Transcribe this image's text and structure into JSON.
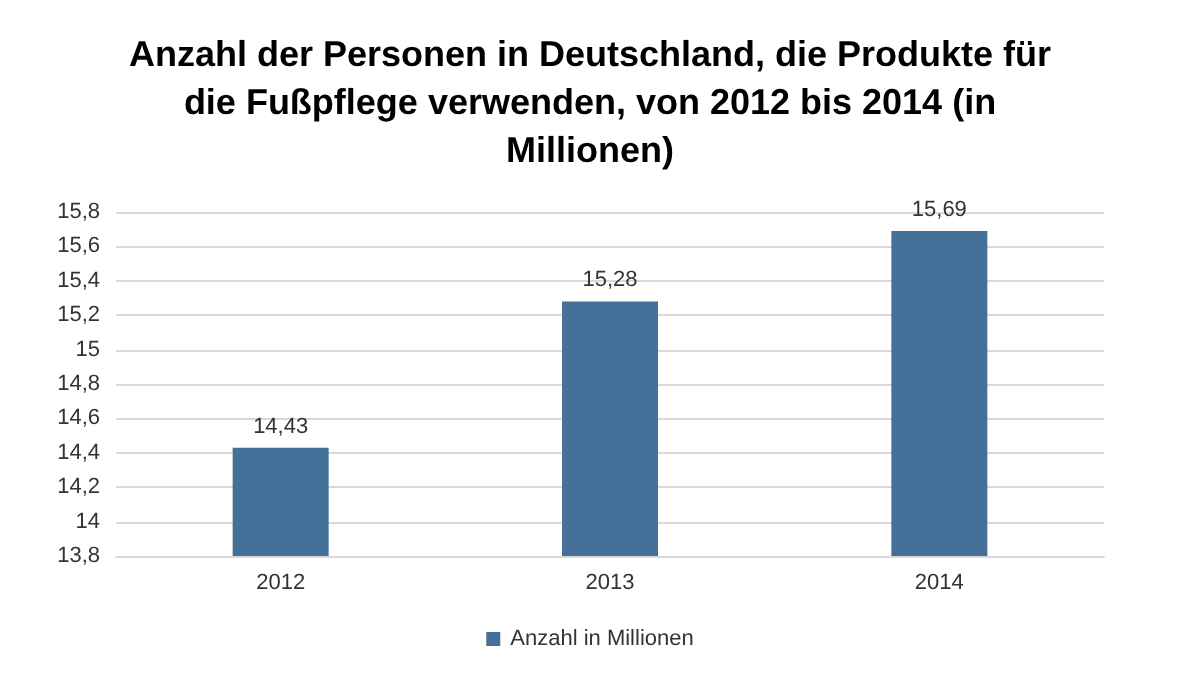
{
  "chart_data": {
    "type": "bar",
    "title": "Anzahl der Personen in Deutschland, die Produkte für die Fußpflege verwenden, von 2012 bis 2014 (in Millionen)",
    "categories": [
      "2012",
      "2013",
      "2014"
    ],
    "series": [
      {
        "name": "Anzahl in Millionen",
        "color": "#44709a",
        "values": [
          14.43,
          15.28,
          15.69
        ],
        "value_labels": [
          "14,43",
          "15,28",
          "15,69"
        ]
      }
    ],
    "ylim": [
      13.8,
      15.8
    ],
    "yticks": [
      {
        "value": 13.8,
        "label": "13,8"
      },
      14,
      {
        "value": 14.2,
        "label": "14,2"
      },
      {
        "value": 14.4,
        "label": "14,4"
      },
      {
        "value": 14.6,
        "label": "14,6"
      },
      {
        "value": 14.8,
        "label": "14,8"
      },
      15,
      {
        "value": 15.2,
        "label": "15,2"
      },
      {
        "value": 15.4,
        "label": "15,4"
      },
      {
        "value": 15.6,
        "label": "15,6"
      },
      {
        "value": 15.8,
        "label": "15,8"
      }
    ],
    "grid": "y",
    "legend": "bottom"
  }
}
